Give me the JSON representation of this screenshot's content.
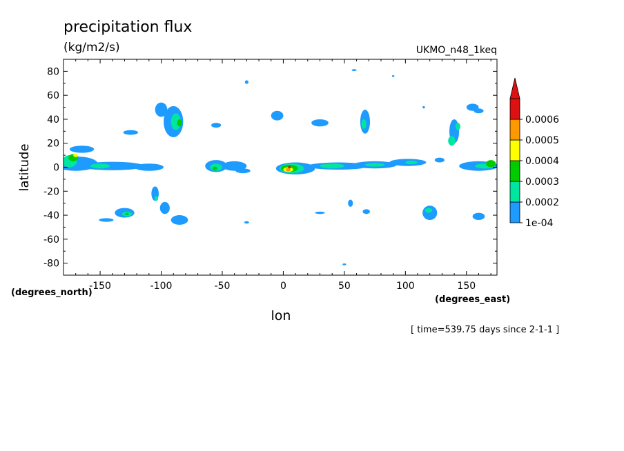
{
  "chart_data": {
    "type": "heatmap",
    "title": "precipitation flux",
    "units": "(kg/m2/s)",
    "dataset": "UKMO_n48_1keq",
    "xlabel": "lon",
    "ylabel": "latitude",
    "x_units": "(degrees_east)",
    "y_units": "(degrees_north)",
    "time_label": "[ time=539.75 days since 2-1-1 ]",
    "xlim": [
      -180,
      175
    ],
    "ylim": [
      -90,
      90
    ],
    "x_ticks": [
      -150,
      -100,
      -50,
      0,
      50,
      100,
      150
    ],
    "x_tick_labels": [
      "-150",
      "-100",
      "-50",
      "0",
      "50",
      "100",
      "150"
    ],
    "y_ticks": [
      -80,
      -60,
      -40,
      -20,
      0,
      20,
      40,
      60,
      80
    ],
    "y_tick_labels": [
      "-80",
      "-60",
      "-40",
      "-20",
      "0",
      "20",
      "40",
      "60",
      "80"
    ],
    "colorbar": {
      "levels": [
        0.0001,
        0.0002,
        0.0003,
        0.0004,
        0.0005,
        0.0006
      ],
      "labels": [
        "1e-04",
        "0.0002",
        "0.0003",
        "0.0004",
        "0.0005",
        "0.0006"
      ],
      "colors": [
        "#1e9bff",
        "#00e5a0",
        "#00cc00",
        "#ffff00",
        "#ff9900",
        "#dd1111"
      ],
      "extend": "max"
    },
    "features": [
      {
        "lon": -170,
        "lat": 3,
        "dlon": 18,
        "dlat": 6,
        "level": 0
      },
      {
        "lon": -140,
        "lat": 1,
        "dlon": 26,
        "dlat": 3.5,
        "level": 0
      },
      {
        "lon": -110,
        "lat": 0,
        "dlon": 12,
        "dlat": 3,
        "level": 0
      },
      {
        "lon": -175,
        "lat": 5,
        "dlon": 6,
        "dlat": 5,
        "level": 1
      },
      {
        "lon": -172,
        "lat": 8,
        "dlon": 4,
        "dlat": 3,
        "level": 2
      },
      {
        "lon": -170,
        "lat": 10,
        "dlon": 2,
        "dlat": 1.5,
        "level": 3
      },
      {
        "lon": -165,
        "lat": 15,
        "dlon": 10,
        "dlat": 3,
        "level": 0
      },
      {
        "lon": -150,
        "lat": 1,
        "dlon": 8,
        "dlat": 2,
        "level": 1
      },
      {
        "lon": -90,
        "lat": 38,
        "dlon": 8,
        "dlat": 13,
        "level": 0
      },
      {
        "lon": -100,
        "lat": 48,
        "dlon": 5,
        "dlat": 6,
        "level": 0
      },
      {
        "lon": -88,
        "lat": 38,
        "dlon": 4,
        "dlat": 7,
        "level": 1
      },
      {
        "lon": -85,
        "lat": 37,
        "dlon": 2,
        "dlat": 3,
        "level": 2
      },
      {
        "lon": -125,
        "lat": 29,
        "dlon": 6,
        "dlat": 2,
        "level": 0
      },
      {
        "lon": -55,
        "lat": 1,
        "dlon": 9,
        "dlat": 5,
        "level": 0
      },
      {
        "lon": -55,
        "lat": 0,
        "dlon": 5,
        "dlat": 3,
        "level": 1
      },
      {
        "lon": -56,
        "lat": -1,
        "dlon": 2,
        "dlat": 1.5,
        "level": 2
      },
      {
        "lon": -40,
        "lat": 1,
        "dlon": 10,
        "dlat": 4,
        "level": 0
      },
      {
        "lon": -33,
        "lat": -3,
        "dlon": 6,
        "dlat": 2,
        "level": 0
      },
      {
        "lon": -55,
        "lat": 35,
        "dlon": 4,
        "dlat": 2,
        "level": 0
      },
      {
        "lon": -30,
        "lat": 71,
        "dlon": 1.5,
        "dlat": 1.5,
        "level": 0
      },
      {
        "lon": 10,
        "lat": -1,
        "dlon": 16,
        "dlat": 5,
        "level": 0
      },
      {
        "lon": 7,
        "lat": -1,
        "dlon": 10,
        "dlat": 4,
        "level": 1
      },
      {
        "lon": 5,
        "lat": -1,
        "dlon": 7,
        "dlat": 3,
        "level": 2
      },
      {
        "lon": 4,
        "lat": -2,
        "dlon": 4,
        "dlat": 2,
        "level": 3
      },
      {
        "lon": 4,
        "lat": -2,
        "dlon": 2,
        "dlat": 1.5,
        "level": 4
      },
      {
        "lon": 5,
        "lat": 0,
        "dlon": 1,
        "dlat": 1,
        "level": 5
      },
      {
        "lon": 45,
        "lat": 1,
        "dlon": 25,
        "dlat": 3,
        "level": 0
      },
      {
        "lon": 40,
        "lat": 1,
        "dlon": 10,
        "dlat": 2,
        "level": 1
      },
      {
        "lon": 75,
        "lat": 2,
        "dlon": 18,
        "dlat": 3,
        "level": 0
      },
      {
        "lon": 75,
        "lat": 2,
        "dlon": 8,
        "dlat": 1.5,
        "level": 1
      },
      {
        "lon": 102,
        "lat": 4,
        "dlon": 15,
        "dlat": 3,
        "level": 0
      },
      {
        "lon": 105,
        "lat": 4,
        "dlon": 5,
        "dlat": 1.5,
        "level": 1
      },
      {
        "lon": 160,
        "lat": 1,
        "dlon": 16,
        "dlat": 4,
        "level": 0
      },
      {
        "lon": 165,
        "lat": 1,
        "dlon": 8,
        "dlat": 2,
        "level": 1
      },
      {
        "lon": 170,
        "lat": 3,
        "dlon": 4,
        "dlat": 3,
        "level": 2
      },
      {
        "lon": 128,
        "lat": 6,
        "dlon": 4,
        "dlat": 2,
        "level": 0
      },
      {
        "lon": -5,
        "lat": 43,
        "dlon": 5,
        "dlat": 4,
        "level": 0
      },
      {
        "lon": 30,
        "lat": 37,
        "dlon": 7,
        "dlat": 3,
        "level": 0
      },
      {
        "lon": 67,
        "lat": 38,
        "dlon": 4,
        "dlat": 10,
        "level": 0
      },
      {
        "lon": 66,
        "lat": 36,
        "dlon": 2,
        "dlat": 4,
        "level": 1
      },
      {
        "lon": 140,
        "lat": 30,
        "dlon": 4,
        "dlat": 10,
        "level": 0
      },
      {
        "lon": 138,
        "lat": 22,
        "dlon": 3,
        "dlat": 4,
        "level": 1
      },
      {
        "lon": 143,
        "lat": 34,
        "dlon": 2,
        "dlat": 3,
        "level": 1
      },
      {
        "lon": 155,
        "lat": 50,
        "dlon": 5,
        "dlat": 3,
        "level": 0
      },
      {
        "lon": 160,
        "lat": 47,
        "dlon": 4,
        "dlat": 2,
        "level": 0
      },
      {
        "lon": -130,
        "lat": -38,
        "dlon": 8,
        "dlat": 4,
        "level": 0
      },
      {
        "lon": -128,
        "lat": -39,
        "dlon": 4,
        "dlat": 2,
        "level": 1
      },
      {
        "lon": -128,
        "lat": -39,
        "dlon": 1.5,
        "dlat": 1,
        "level": 2
      },
      {
        "lon": -145,
        "lat": -44,
        "dlon": 6,
        "dlat": 1.5,
        "level": 0
      },
      {
        "lon": -105,
        "lat": -22,
        "dlon": 3,
        "dlat": 6,
        "level": 0
      },
      {
        "lon": -97,
        "lat": -34,
        "dlon": 4,
        "dlat": 5,
        "level": 0
      },
      {
        "lon": -85,
        "lat": -44,
        "dlon": 7,
        "dlat": 4,
        "level": 0
      },
      {
        "lon": -104,
        "lat": -26,
        "dlon": 1.5,
        "dlat": 2,
        "level": 1
      },
      {
        "lon": 55,
        "lat": -30,
        "dlon": 2,
        "dlat": 3,
        "level": 0
      },
      {
        "lon": 68,
        "lat": -37,
        "dlon": 3,
        "dlat": 2,
        "level": 0
      },
      {
        "lon": 120,
        "lat": -38,
        "dlon": 6,
        "dlat": 6,
        "level": 0
      },
      {
        "lon": 119,
        "lat": -36,
        "dlon": 3,
        "dlat": 2,
        "level": 1
      },
      {
        "lon": 160,
        "lat": -41,
        "dlon": 5,
        "dlat": 3,
        "level": 0
      },
      {
        "lon": -30,
        "lat": -46,
        "dlon": 2,
        "dlat": 1,
        "level": 0
      },
      {
        "lon": 30,
        "lat": -38,
        "dlon": 4,
        "dlat": 1,
        "level": 0
      },
      {
        "lon": 58,
        "lat": 81,
        "dlon": 2,
        "dlat": 0.8,
        "level": 0
      },
      {
        "lon": 90,
        "lat": 76,
        "dlon": 1,
        "dlat": 0.8,
        "level": 0
      },
      {
        "lon": 50,
        "lat": -81,
        "dlon": 1.5,
        "dlat": 0.8,
        "level": 0
      },
      {
        "lon": 115,
        "lat": 50,
        "dlon": 1,
        "dlat": 1,
        "level": 0
      }
    ]
  }
}
